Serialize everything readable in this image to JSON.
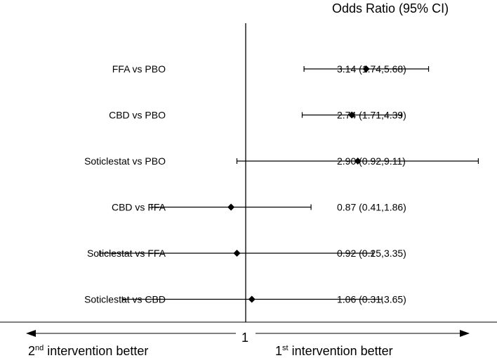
{
  "chart_data": {
    "type": "forest",
    "header": "Odds Ratio (95% CI)",
    "reference_value": 1,
    "reference_label": "1",
    "left_direction": {
      "sup_prefix": "2",
      "sup": "nd",
      "text": " intervention better"
    },
    "right_direction": {
      "sup_prefix": "1",
      "sup": "st",
      "text": " intervention better"
    },
    "rows": [
      {
        "label": "FFA vs PBO",
        "or": 3.14,
        "lo": 1.74,
        "hi": 5.68,
        "text": "3.14 (1.74,5.68)"
      },
      {
        "label": "CBD vs PBO",
        "or": 2.74,
        "lo": 1.71,
        "hi": 4.39,
        "text": "2.74 (1.71,4.39)"
      },
      {
        "label": "Soticlestat vs PBO",
        "or": 2.9,
        "lo": 0.92,
        "hi": 9.11,
        "text": "2.90 (0.92,9.11)"
      },
      {
        "label": "CBD vs FFA",
        "or": 0.87,
        "lo": 0.41,
        "hi": 1.86,
        "text": "0.87 (0.41,1.86)"
      },
      {
        "label": "Soticlestat vs FFA",
        "or": 0.92,
        "lo": 0.25,
        "hi": 3.35,
        "text": "0.92 (0.25,3.35)"
      },
      {
        "label": "Soticlestat vs CBD",
        "or": 1.06,
        "lo": 0.31,
        "hi": 3.65,
        "text": "1.06 (0.31,3.65)"
      }
    ]
  }
}
